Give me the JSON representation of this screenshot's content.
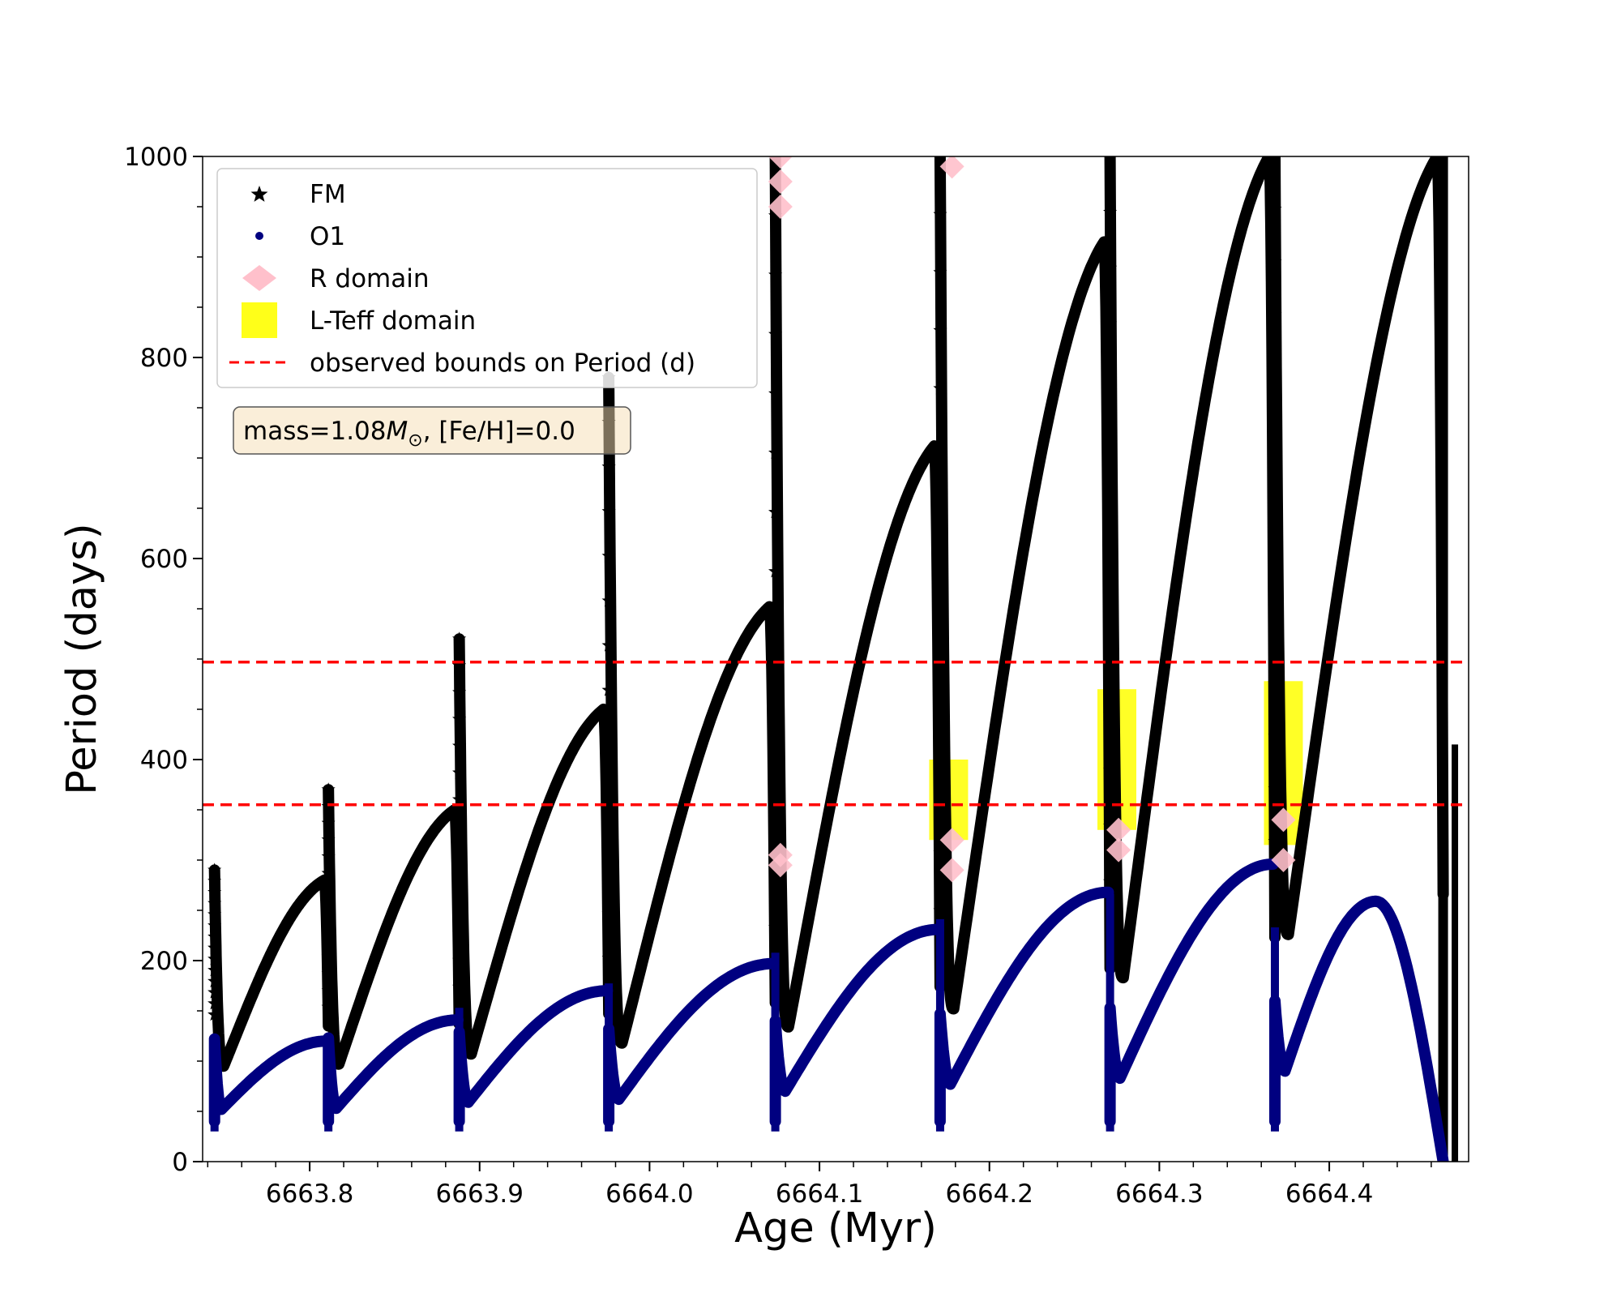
{
  "chart_data": {
    "type": "scatter",
    "xlabel": "Age (Myr)",
    "ylabel": "Period (days)",
    "xlim": [
      6663.737,
      6664.482
    ],
    "ylim": [
      0,
      1000
    ],
    "x_ticks": [
      "6663.8",
      "6663.9",
      "6664.0",
      "6664.1",
      "6664.2",
      "6664.3",
      "6664.4"
    ],
    "y_ticks": [
      "0",
      "200",
      "400",
      "600",
      "800",
      "1000"
    ],
    "legend_position": "upper left",
    "annotation": {
      "prefix": "mass=1.08",
      "symbol": "M",
      "subscript": "⊙",
      "suffix": ", [Fe/H]=0.0"
    },
    "legend": [
      "FM",
      "O1",
      "R domain",
      "L-Teff domain",
      "observed bounds on Period (d)"
    ],
    "hlines": [
      {
        "name": "observed bounds on Period (d)",
        "values": [
          355,
          497
        ],
        "color": "#ff0000",
        "style": "dashed"
      }
    ],
    "series": [
      {
        "name": "FM",
        "marker": "star",
        "color": "#000000",
        "cycles": [
          {
            "start": 6663.744,
            "end": 6663.811,
            "min": 95,
            "peak": 280,
            "spike": 290
          },
          {
            "start": 6663.811,
            "end": 6663.888,
            "min": 97,
            "peak": 350,
            "spike": 370
          },
          {
            "start": 6663.888,
            "end": 6663.976,
            "min": 107,
            "peak": 450,
            "spike": 520
          },
          {
            "start": 6663.976,
            "end": 6664.074,
            "min": 118,
            "peak": 552,
            "spike": 780
          },
          {
            "start": 6664.074,
            "end": 6664.171,
            "min": 134,
            "peak": 712,
            "spike": 1000
          },
          {
            "start": 6664.171,
            "end": 6664.271,
            "min": 152,
            "peak": 915,
            "spike": 1000
          },
          {
            "start": 6664.271,
            "end": 6664.368,
            "min": 183,
            "peak": 1000,
            "spike": 1000
          },
          {
            "start": 6664.368,
            "end": 6664.467,
            "min": 226,
            "peak": 1000,
            "spike": 1000
          }
        ]
      },
      {
        "name": "O1",
        "marker": "circle",
        "color": "#000080",
        "cycles": [
          {
            "start": 6663.744,
            "end": 6663.811,
            "min": 52,
            "peak": 120
          },
          {
            "start": 6663.811,
            "end": 6663.888,
            "min": 53,
            "peak": 141
          },
          {
            "start": 6663.888,
            "end": 6663.976,
            "min": 59,
            "peak": 170
          },
          {
            "start": 6663.976,
            "end": 6664.074,
            "min": 62,
            "peak": 197
          },
          {
            "start": 6664.074,
            "end": 6664.171,
            "min": 70,
            "peak": 231
          },
          {
            "start": 6664.171,
            "end": 6664.271,
            "min": 77,
            "peak": 268
          },
          {
            "start": 6664.271,
            "end": 6664.368,
            "min": 83,
            "peak": 296
          },
          {
            "start": 6664.368,
            "end": 6664.467,
            "min": 90,
            "peak": 259
          }
        ]
      },
      {
        "name": "R domain",
        "marker": "diamond",
        "color": "#ffc0cb",
        "points": [
          [
            6664.077,
            295
          ],
          [
            6664.077,
            305
          ],
          [
            6664.077,
            950
          ],
          [
            6664.077,
            975
          ],
          [
            6664.077,
            1000
          ],
          [
            6664.178,
            290
          ],
          [
            6664.178,
            320
          ],
          [
            6664.178,
            990
          ],
          [
            6664.276,
            310
          ],
          [
            6664.276,
            330
          ],
          [
            6664.373,
            300
          ],
          [
            6664.373,
            340
          ]
        ]
      },
      {
        "name": "L-Teff domain",
        "marker": "square",
        "color": "#ffff00",
        "bands": [
          {
            "x": 6664.176,
            "ymin": 320,
            "ymax": 400
          },
          {
            "x": 6664.275,
            "ymin": 330,
            "ymax": 470
          },
          {
            "x": 6664.373,
            "ymin": 315,
            "ymax": 478
          }
        ]
      }
    ]
  }
}
